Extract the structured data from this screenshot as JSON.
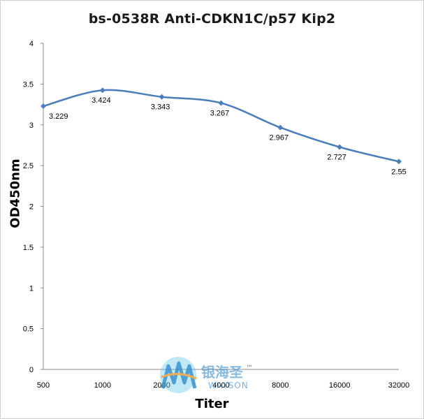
{
  "chart_data": {
    "type": "line",
    "title": "bs-0538R  Anti-CDKN1C/p57 Kip2",
    "xlabel": "Titer",
    "ylabel": "OD450nm",
    "categories": [
      "500",
      "1000",
      "2000",
      "4000",
      "8000",
      "16000",
      "32000"
    ],
    "series": [
      {
        "values": [
          3.229,
          3.424,
          3.343,
          3.267,
          2.967,
          2.727,
          2.55
        ],
        "color": "#4a7ebb"
      }
    ],
    "data_labels": [
      "3.229",
      "3.424",
      "3.343",
      "3.267",
      "2.967",
      "2.727",
      "2.55"
    ],
    "ylim": [
      0,
      4
    ],
    "yticks": [
      "0",
      "0.5",
      "1",
      "1.5",
      "2",
      "2.5",
      "3",
      "3.5",
      "4"
    ],
    "grid": false,
    "legend": "none"
  },
  "watermark": {
    "brand_cn": "银海圣",
    "brand_en": "WAYSON",
    "trademark": "™"
  }
}
